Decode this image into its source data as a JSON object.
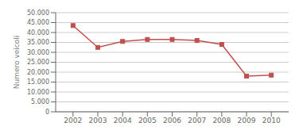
{
  "chart_data": {
    "type": "line",
    "x": [
      2002,
      2003,
      2004,
      2005,
      2006,
      2007,
      2008,
      2009,
      2010
    ],
    "values": [
      43500,
      32500,
      35500,
      36500,
      36500,
      36000,
      34000,
      18000,
      18500
    ],
    "color": "#c0504d",
    "marker": "square",
    "ylabel": "Numero veicoli",
    "xlim": [
      2001.3,
      2010.7
    ],
    "xticks": [
      2002,
      2003,
      2004,
      2005,
      2006,
      2007,
      2008,
      2009,
      2010
    ],
    "ylim": [
      0,
      50000
    ],
    "yticks": [
      0,
      {
        "value": 5000,
        "label": "5.000"
      },
      {
        "value": 10000,
        "label": "10.000"
      },
      {
        "value": 15000,
        "label": "15.000"
      },
      {
        "value": 20000,
        "label": "20.000"
      },
      {
        "value": 25000,
        "label": "25.000"
      },
      {
        "value": 30000,
        "label": "30.000"
      },
      {
        "value": 35000,
        "label": "35.000"
      },
      {
        "value": 40000,
        "label": "40.000"
      },
      {
        "value": 45000,
        "label": "45.000"
      },
      {
        "value": 50000,
        "label": "50.000"
      }
    ],
    "grid": true
  }
}
